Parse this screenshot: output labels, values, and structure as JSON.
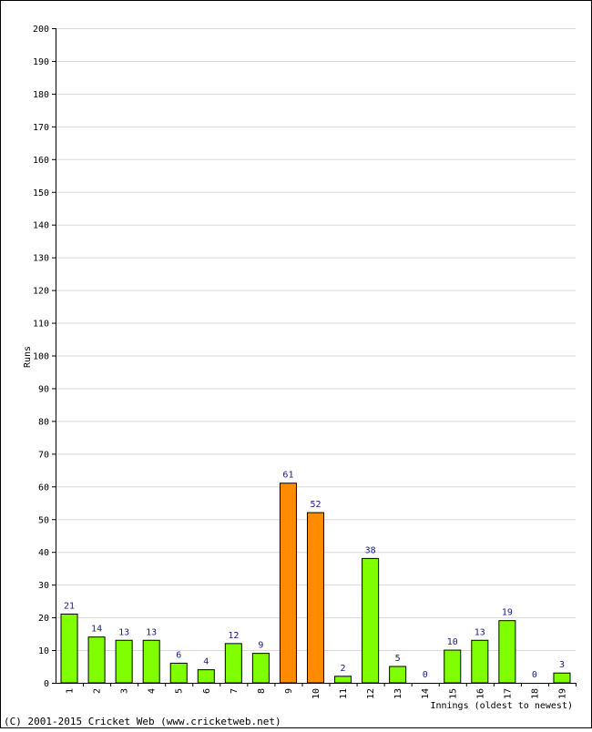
{
  "chart_data": {
    "type": "bar",
    "ylabel": "Runs",
    "xlabel": "Innings (oldest to newest)",
    "ylim": [
      0,
      200
    ],
    "ytick_step": 10,
    "grid": true,
    "categories": [
      "1",
      "2",
      "3",
      "4",
      "5",
      "6",
      "7",
      "8",
      "9",
      "10",
      "11",
      "12",
      "13",
      "14",
      "15",
      "16",
      "17",
      "18",
      "19"
    ],
    "values": [
      21,
      14,
      13,
      13,
      6,
      4,
      12,
      9,
      61,
      52,
      2,
      38,
      5,
      0,
      10,
      13,
      19,
      0,
      3
    ],
    "highlight": [
      false,
      false,
      false,
      false,
      false,
      false,
      false,
      false,
      true,
      true,
      false,
      false,
      false,
      false,
      false,
      false,
      false,
      false,
      false
    ],
    "colors": {
      "normal": "#80ff00",
      "highlight": "#ff8c00",
      "label": "#1a1a8c",
      "grid": "#d8d8d8"
    }
  },
  "footer": {
    "copyright": "(C) 2001-2015 Cricket Web (www.cricketweb.net)"
  }
}
